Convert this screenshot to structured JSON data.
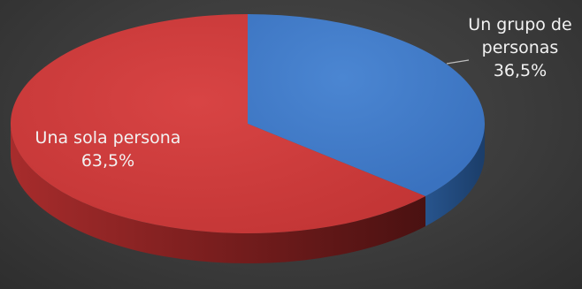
{
  "chart_data": {
    "type": "pie",
    "style": "3d",
    "slices": [
      {
        "label": "Un grupo de personas",
        "label_lines": [
          "Un grupo de",
          "personas"
        ],
        "value": 36.5,
        "value_text": "36,5%",
        "color": "#3d78c6"
      },
      {
        "label": "Una sola persona",
        "label_lines": [
          "Una sola persona"
        ],
        "value": 63.5,
        "value_text": "63,5%",
        "color": "#cc3b3b"
      }
    ],
    "title": "",
    "legend": "none"
  }
}
